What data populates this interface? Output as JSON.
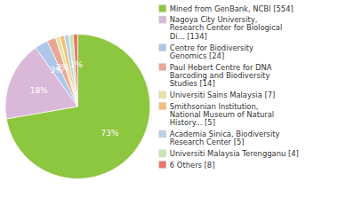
{
  "chart_data": {
    "type": "pie",
    "categories": [
      "Mined from GenBank, NCBI [554]",
      "Nagoya City University,\nResearch Center for Biological\nDi... [134]",
      "Centre for Biodiversity\nGenomics [24]",
      "Paul Hebert Centre for DNA\nBarcoding and Biodiversity\nStudies [14]",
      "Universiti Sains Malaysia [7]",
      "Smithsonian Institution,\nNational Museum of Natural\nHistory... [5]",
      "Academia Sinica, Biodiversity\nResearch Center [5]",
      "Universiti Malaysia Terengganu [4]",
      "6 Others [8]"
    ],
    "values": [
      73,
      18,
      3,
      2,
      1,
      1,
      1,
      1,
      1
    ],
    "value_labels": [
      "73%",
      "18%",
      "3%",
      "2%",
      null,
      null,
      null,
      null,
      "1%"
    ],
    "colors": [
      "#8dc63f",
      "#d9b8d9",
      "#aec6e8",
      "#e8a898",
      "#e8e4a0",
      "#f4bb7a",
      "#b8cfe8",
      "#c8e4b0",
      "#e8756a"
    ],
    "data_labels": true,
    "legend": "right"
  }
}
